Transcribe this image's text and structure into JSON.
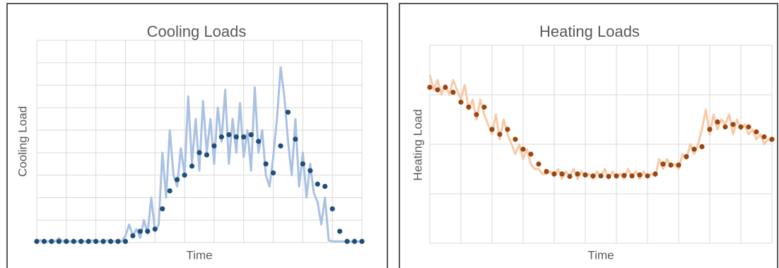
{
  "chart_data": [
    {
      "type": "line-dots",
      "title": "Cooling Loads",
      "ylabel": "Cooling Load",
      "xlabel": "Time",
      "xlim": [
        0,
        11
      ],
      "xticks": [
        0,
        1,
        2,
        3,
        4,
        5,
        6,
        7,
        8,
        9,
        10,
        11
      ],
      "ylim": [
        0,
        9
      ],
      "yticks": [
        0,
        1,
        2,
        3,
        4,
        5,
        6,
        7,
        8,
        9
      ],
      "grid": true,
      "series": [
        {
          "style": "line",
          "color": "#a9c1e3",
          "x": [
            0,
            0.125,
            0.25,
            0.375,
            0.5,
            0.625,
            0.75,
            0.875,
            1,
            1.125,
            1.25,
            1.375,
            1.5,
            1.625,
            1.75,
            1.875,
            2,
            2.125,
            2.25,
            2.375,
            2.5,
            2.625,
            2.75,
            2.875,
            3,
            3.125,
            3.25,
            3.375,
            3.5,
            3.625,
            3.75,
            3.875,
            4,
            4.125,
            4.25,
            4.375,
            4.5,
            4.625,
            4.75,
            4.875,
            5,
            5.125,
            5.25,
            5.375,
            5.5,
            5.625,
            5.75,
            5.875,
            6,
            6.125,
            6.25,
            6.375,
            6.5,
            6.625,
            6.75,
            6.875,
            7,
            7.125,
            7.25,
            7.375,
            7.5,
            7.625,
            7.75,
            7.875,
            8,
            8.125,
            8.25,
            8.375,
            8.5,
            8.625,
            8.75,
            8.875,
            9,
            9.125,
            9.25,
            9.375,
            9.5,
            9.625,
            9.75,
            9.875,
            10,
            10.125,
            10.25,
            10.375,
            10.5,
            10.625,
            10.75,
            10.875,
            11
          ],
          "values": [
            0.05,
            0.1,
            0.05,
            0.05,
            0.1,
            0.05,
            0.2,
            0.05,
            0.1,
            0.05,
            0.05,
            0.05,
            0.1,
            0.05,
            0.05,
            0.1,
            0.05,
            0.05,
            0.05,
            0.1,
            0.05,
            0.05,
            0.1,
            0.05,
            0.3,
            0.8,
            0.3,
            0.6,
            0.2,
            1.0,
            0.4,
            2.0,
            0.5,
            0.8,
            4.0,
            2.0,
            5.0,
            3.0,
            2.5,
            4.2,
            3.0,
            6.5,
            3.5,
            5.5,
            3.2,
            6.3,
            4.0,
            5.5,
            3.5,
            6.0,
            4.5,
            6.8,
            3.5,
            5.5,
            4.0,
            6.2,
            3.8,
            5.0,
            3.2,
            6.9,
            4.0,
            5.0,
            3.0,
            2.5,
            3.8,
            5.5,
            7.8,
            6.5,
            4.5,
            3.0,
            5.5,
            2.5,
            4.0,
            2.0,
            3.5,
            2.2,
            1.8,
            0.8,
            2.0,
            0.1,
            0.05,
            0.05,
            0.05,
            0.05,
            0.05,
            0.05,
            0.05,
            0.05,
            0.05
          ]
        },
        {
          "style": "dots",
          "color": "#1f4e79",
          "x": [
            0,
            0.25,
            0.5,
            0.75,
            1,
            1.25,
            1.5,
            1.75,
            2,
            2.25,
            2.5,
            2.75,
            3,
            3.25,
            3.5,
            3.75,
            4,
            4.25,
            4.5,
            4.75,
            5,
            5.25,
            5.5,
            5.75,
            6,
            6.25,
            6.5,
            6.75,
            7,
            7.25,
            7.5,
            7.75,
            8,
            8.25,
            8.5,
            8.75,
            9,
            9.25,
            9.5,
            9.75,
            10,
            10.25,
            10.5,
            10.75,
            11
          ],
          "values": [
            0.05,
            0.05,
            0.05,
            0.05,
            0.05,
            0.05,
            0.05,
            0.05,
            0.05,
            0.05,
            0.05,
            0.05,
            0.05,
            0.3,
            0.5,
            0.5,
            0.6,
            1.5,
            2.3,
            2.8,
            3.0,
            3.4,
            4.0,
            3.9,
            4.3,
            4.7,
            4.8,
            4.7,
            4.7,
            4.8,
            4.5,
            3.5,
            3.1,
            4.3,
            5.8,
            4.6,
            3.5,
            3.2,
            2.6,
            2.5,
            1.5,
            0.5,
            0.05,
            0.05,
            0.05
          ]
        }
      ]
    },
    {
      "type": "line-dots",
      "title": "Heating Loads",
      "ylabel": "Heating Load",
      "xlabel": "Time",
      "xlim": [
        0,
        11
      ],
      "xticks": [
        0,
        1,
        2,
        3,
        4,
        5,
        6,
        7,
        8,
        9,
        10,
        11
      ],
      "ylim": [
        0,
        4
      ],
      "yticks": [
        0,
        1,
        2,
        3,
        4
      ],
      "grid": true,
      "series": [
        {
          "style": "line",
          "color": "#f9c9a7",
          "x": [
            0,
            0.125,
            0.25,
            0.375,
            0.5,
            0.625,
            0.75,
            0.875,
            1,
            1.125,
            1.25,
            1.375,
            1.5,
            1.625,
            1.75,
            1.875,
            2,
            2.125,
            2.25,
            2.375,
            2.5,
            2.625,
            2.75,
            2.875,
            3,
            3.125,
            3.25,
            3.375,
            3.5,
            3.625,
            3.75,
            3.875,
            4,
            4.125,
            4.25,
            4.375,
            4.5,
            4.625,
            4.75,
            4.875,
            5,
            5.125,
            5.25,
            5.375,
            5.5,
            5.625,
            5.75,
            5.875,
            6,
            6.125,
            6.25,
            6.375,
            6.5,
            6.625,
            6.75,
            6.875,
            7,
            7.125,
            7.25,
            7.375,
            7.5,
            7.625,
            7.75,
            7.875,
            8,
            8.125,
            8.25,
            8.375,
            8.5,
            8.625,
            8.75,
            8.875,
            9,
            9.125,
            9.25,
            9.375,
            9.5,
            9.625,
            9.75,
            9.875,
            10,
            10.125,
            10.25,
            10.375,
            10.5,
            10.625,
            10.75,
            10.875,
            11
          ],
          "values": [
            3.4,
            3.1,
            3.3,
            3.0,
            3.2,
            3.0,
            3.3,
            3.1,
            2.9,
            3.2,
            2.7,
            2.9,
            2.5,
            2.9,
            2.6,
            2.4,
            2.2,
            2.6,
            2.1,
            2.5,
            2.2,
            2.0,
            1.8,
            2.0,
            1.7,
            1.9,
            1.6,
            1.5,
            1.5,
            1.4,
            1.4,
            1.45,
            1.35,
            1.5,
            1.3,
            1.45,
            1.35,
            1.5,
            1.3,
            1.45,
            1.35,
            1.4,
            1.3,
            1.45,
            1.35,
            1.5,
            1.3,
            1.45,
            1.35,
            1.4,
            1.3,
            1.5,
            1.35,
            1.45,
            1.3,
            1.45,
            1.35,
            1.4,
            1.35,
            1.7,
            1.5,
            1.7,
            1.55,
            1.6,
            1.5,
            1.8,
            1.7,
            2.0,
            1.8,
            2.0,
            2.3,
            2.7,
            2.2,
            2.6,
            2.3,
            2.5,
            2.4,
            2.6,
            2.2,
            2.5,
            2.3,
            2.4,
            2.2,
            2.3,
            2.1,
            2.2,
            2.0,
            2.1,
            2.05
          ]
        },
        {
          "style": "dots",
          "color": "#9c4510",
          "x": [
            0,
            0.25,
            0.5,
            0.75,
            1,
            1.25,
            1.5,
            1.75,
            2,
            2.25,
            2.5,
            2.75,
            3,
            3.25,
            3.5,
            3.75,
            4,
            4.25,
            4.5,
            4.75,
            5,
            5.25,
            5.5,
            5.75,
            6,
            6.25,
            6.5,
            6.75,
            7,
            7.25,
            7.5,
            7.75,
            8,
            8.25,
            8.5,
            8.75,
            9,
            9.25,
            9.5,
            9.75,
            10,
            10.25,
            10.5,
            10.75,
            11
          ],
          "values": [
            3.15,
            3.1,
            3.15,
            3.05,
            2.85,
            2.75,
            2.6,
            2.75,
            2.3,
            2.2,
            2.3,
            2.1,
            1.9,
            1.8,
            1.6,
            1.45,
            1.4,
            1.4,
            1.35,
            1.4,
            1.38,
            1.36,
            1.36,
            1.35,
            1.36,
            1.37,
            1.36,
            1.38,
            1.36,
            1.4,
            1.6,
            1.58,
            1.58,
            1.75,
            1.9,
            1.95,
            2.3,
            2.45,
            2.35,
            2.4,
            2.35,
            2.35,
            2.25,
            2.15,
            2.1
          ]
        }
      ]
    }
  ]
}
